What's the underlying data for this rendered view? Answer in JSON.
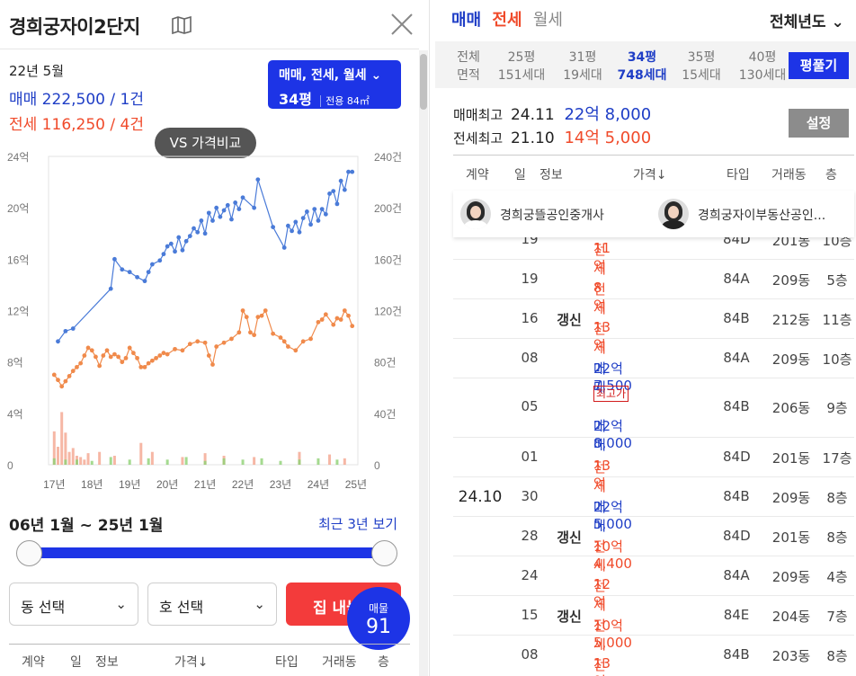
{
  "header": {
    "title": "경희궁자이2단지",
    "vs_button": "VS 가격비교"
  },
  "summary": {
    "date": "22년 5월",
    "sale": "매매 222,500 / 1건",
    "jeonse": "전세 116,250 / 4건"
  },
  "filter": {
    "line1": "매매, 전세, 월세",
    "pyeong": "34평",
    "area": "전용 84㎡"
  },
  "chart_data": {
    "type": "line",
    "title": "",
    "x_ticks": [
      "17년",
      "18년",
      "19년",
      "20년",
      "21년",
      "22년",
      "23년",
      "24년",
      "25년"
    ],
    "y_left_ticks": [
      "0",
      "4억",
      "8억",
      "12억",
      "16억",
      "20억",
      "24억"
    ],
    "ylim_left": [
      0,
      24
    ],
    "y_right_ticks": [
      "0",
      "40건",
      "80건",
      "120건",
      "160건",
      "200건",
      "240건"
    ],
    "ylim_right": [
      0,
      240
    ],
    "series": [
      {
        "color": "#4a7bd8",
        "x": [
          2017.1,
          2017.3,
          2017.5,
          2018.5,
          2018.6,
          2018.8,
          2019.0,
          2019.2,
          2019.4,
          2019.5,
          2019.6,
          2019.8,
          2019.9,
          2020.0,
          2020.1,
          2020.2,
          2020.3,
          2020.4,
          2020.5,
          2020.6,
          2020.7,
          2020.8,
          2020.9,
          2021.0,
          2021.1,
          2021.2,
          2021.3,
          2021.4,
          2021.5,
          2021.6,
          2021.7,
          2021.8,
          2021.9,
          2022.0,
          2022.3,
          2022.4,
          2022.8,
          2023.1,
          2023.2,
          2023.3,
          2023.4,
          2023.5,
          2023.6,
          2023.7,
          2023.8,
          2023.9,
          2024.0,
          2024.1,
          2024.2,
          2024.3,
          2024.4,
          2024.5,
          2024.6,
          2024.7,
          2024.8,
          2024.9
        ],
        "y": [
          9.6,
          10.4,
          10.6,
          13.7,
          16.0,
          15.2,
          15.0,
          14.6,
          14.3,
          15.0,
          15.6,
          15.9,
          16.4,
          17.0,
          17.2,
          16.6,
          17.7,
          16.7,
          17.4,
          17.8,
          18.4,
          18.1,
          19.0,
          18.0,
          19.6,
          19.0,
          20.0,
          19.3,
          19.8,
          20.2,
          19.1,
          20.4,
          19.9,
          20.8,
          20.0,
          22.2,
          18.5,
          16.9,
          18.6,
          18.2,
          18.9,
          18.1,
          19.2,
          19.7,
          18.7,
          19.9,
          19.0,
          19.9,
          19.5,
          21.1,
          21.3,
          20.3,
          22.1,
          21.4,
          22.8,
          22.8
        ]
      },
      {
        "color": "#f08a4b",
        "x": [
          2017.0,
          2017.1,
          2017.2,
          2017.3,
          2017.4,
          2017.5,
          2017.6,
          2017.7,
          2017.8,
          2017.9,
          2018.0,
          2018.1,
          2018.2,
          2018.3,
          2018.4,
          2018.5,
          2018.6,
          2018.7,
          2018.8,
          2018.9,
          2019.0,
          2019.1,
          2019.2,
          2019.3,
          2019.4,
          2019.5,
          2019.6,
          2019.7,
          2019.8,
          2019.9,
          2020.0,
          2020.2,
          2020.4,
          2020.6,
          2020.8,
          2021.0,
          2021.1,
          2021.2,
          2021.3,
          2021.5,
          2021.7,
          2021.9,
          2022.0,
          2022.1,
          2022.2,
          2022.3,
          2022.4,
          2022.5,
          2022.6,
          2022.8,
          2023.0,
          2023.1,
          2023.2,
          2023.4,
          2023.6,
          2023.8,
          2024.0,
          2024.1,
          2024.2,
          2024.4,
          2024.5,
          2024.6,
          2024.7,
          2024.8,
          2024.9
        ],
        "y": [
          7.0,
          6.6,
          6.1,
          6.5,
          6.9,
          7.3,
          7.6,
          7.9,
          8.5,
          9.1,
          8.9,
          8.4,
          7.7,
          8.5,
          8.9,
          8.4,
          8.6,
          8.4,
          8.0,
          8.3,
          9.1,
          8.7,
          8.3,
          7.6,
          7.6,
          7.9,
          8.1,
          8.3,
          8.5,
          8.7,
          8.6,
          9.0,
          8.9,
          9.4,
          9.6,
          9.5,
          8.5,
          7.8,
          9.2,
          9.5,
          9.8,
          10.3,
          12.0,
          11.5,
          10.3,
          10.1,
          11.5,
          11.6,
          12.0,
          10.2,
          9.9,
          9.6,
          9.2,
          8.9,
          9.6,
          9.8,
          11.1,
          11.3,
          11.7,
          10.9,
          11.4,
          11.3,
          12.0,
          11.6,
          10.8
        ]
      }
    ],
    "volume": [
      {
        "color": "#f4a58f",
        "x": [
          2017.0,
          2017.1,
          2017.2,
          2017.3,
          2017.4,
          2017.5,
          2017.6,
          2017.7,
          2017.8,
          2017.9,
          2018.2,
          2018.6,
          2019.3,
          2019.6,
          2020.4,
          2021.0,
          2021.5,
          2022.3,
          2023.5,
          2024.3,
          2024.7
        ],
        "v": [
          26,
          14,
          41,
          25,
          10,
          13,
          7,
          6,
          4,
          9,
          10,
          7,
          17,
          10,
          6,
          9,
          7,
          6,
          10,
          8,
          5
        ]
      },
      {
        "color": "#8ed174",
        "x": [
          2017.0,
          2017.3,
          2017.6,
          2018.0,
          2018.5,
          2019.0,
          2019.5,
          2020.0,
          2020.5,
          2021.0,
          2021.5,
          2022.0,
          2022.5,
          2023.0,
          2023.5,
          2024.0,
          2024.5
        ],
        "v": [
          5,
          4,
          4,
          3,
          6,
          4,
          5,
          4,
          6,
          3,
          5,
          4,
          5,
          3,
          4,
          5,
          4
        ]
      }
    ]
  },
  "date_range": {
    "label": "06년 1월 ~ 25년 1월",
    "recent": "최근 3년 보기"
  },
  "selects": {
    "dong": "동 선택",
    "ho": "호 선택"
  },
  "listing_button": "집 내놓기",
  "badge": {
    "label": "매물",
    "count": "91"
  },
  "table_header": [
    "계약",
    "일",
    "정보",
    "가격↓",
    "타입",
    "거래동",
    "층"
  ],
  "right": {
    "tabs": {
      "sale": "매매",
      "jeonse": "전세",
      "monthly": "월세"
    },
    "year_select": "전체년도",
    "pyeong_tabs": [
      {
        "top": "전체",
        "bottom": "면적"
      },
      {
        "top": "25평",
        "bottom": "151세대"
      },
      {
        "top": "31평",
        "bottom": "19세대"
      },
      {
        "top": "34평",
        "bottom": "748세대"
      },
      {
        "top": "35평",
        "bottom": "15세대"
      },
      {
        "top": "40평",
        "bottom": "130세대"
      }
    ],
    "pyeong_button": "평풀기",
    "max_sale_label": "매매최고",
    "max_sale_date": "24.11",
    "max_sale_price": "22억 8,000",
    "max_jeonse_label": "전세최고",
    "max_jeonse_date": "21.10",
    "max_jeonse_price": "14억 5,000",
    "settings": "설정",
    "agents": [
      {
        "name": "경희궁뜰공인중개사"
      },
      {
        "name": "경희궁자이부동산공인..."
      }
    ],
    "rows": [
      {
        "date": "",
        "day": "19",
        "info": "",
        "tag": "",
        "type": "전세",
        "price": "11억",
        "color": "red",
        "unit": "84D",
        "dong": "201동",
        "floor": "10층"
      },
      {
        "date": "",
        "day": "19",
        "info": "",
        "tag": "",
        "type": "전세",
        "price": "8억",
        "color": "red",
        "unit": "84A",
        "dong": "209동",
        "floor": "5층"
      },
      {
        "date": "",
        "day": "16",
        "info": "갱신",
        "tag": "",
        "type": "전세",
        "price": "13억",
        "color": "red",
        "unit": "84B",
        "dong": "212동",
        "floor": "11층"
      },
      {
        "date": "",
        "day": "08",
        "info": "",
        "tag": "",
        "type": "매매",
        "price": "22억 7,500",
        "color": "blue",
        "unit": "84A",
        "dong": "209동",
        "floor": "10층"
      },
      {
        "date": "",
        "day": "05",
        "info": "",
        "tag": "최고가",
        "type": "매매",
        "price": "22억 8,000",
        "color": "blue",
        "unit": "84B",
        "dong": "206동",
        "floor": "9층"
      },
      {
        "date": "",
        "day": "01",
        "info": "",
        "tag": "",
        "type": "전세",
        "price": "13억",
        "color": "red",
        "unit": "84D",
        "dong": "201동",
        "floor": "17층"
      },
      {
        "date": "24.10",
        "day": "30",
        "info": "",
        "tag": "",
        "type": "매매",
        "price": "22억 5,000",
        "color": "blue",
        "unit": "84B",
        "dong": "209동",
        "floor": "8층"
      },
      {
        "date": "",
        "day": "28",
        "info": "갱신",
        "tag": "",
        "type": "전세",
        "price": "10억 4,400",
        "color": "red",
        "unit": "84D",
        "dong": "201동",
        "floor": "8층"
      },
      {
        "date": "",
        "day": "24",
        "info": "",
        "tag": "",
        "type": "전세",
        "price": "12억",
        "color": "red",
        "unit": "84A",
        "dong": "209동",
        "floor": "4층"
      },
      {
        "date": "",
        "day": "15",
        "info": "갱신",
        "tag": "",
        "type": "전세",
        "price": "10억 5,000",
        "color": "red",
        "unit": "84E",
        "dong": "204동",
        "floor": "7층"
      },
      {
        "date": "",
        "day": "08",
        "info": "",
        "tag": "",
        "type": "전세",
        "price": "13억",
        "color": "red",
        "unit": "84B",
        "dong": "203동",
        "floor": "8층"
      }
    ]
  }
}
